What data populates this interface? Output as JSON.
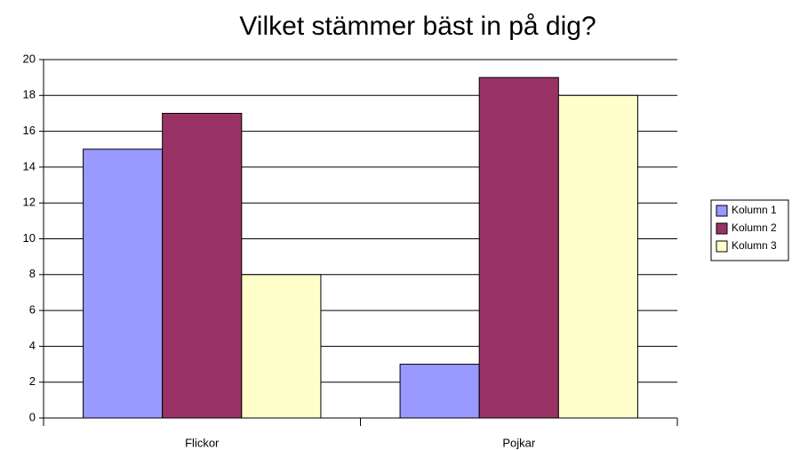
{
  "chart_data": {
    "type": "bar",
    "title": "Vilket stämmer bäst in på dig?",
    "categories": [
      "Flickor",
      "Pojkar"
    ],
    "series": [
      {
        "name": "Kolumn 1",
        "color": "#9999ff",
        "values": [
          15,
          3
        ]
      },
      {
        "name": "Kolumn 2",
        "color": "#993366",
        "values": [
          17,
          19
        ]
      },
      {
        "name": "Kolumn 3",
        "color": "#ffffcc",
        "values": [
          8,
          18
        ]
      }
    ],
    "ylim": [
      0,
      20
    ],
    "yticks": [
      0,
      2,
      4,
      6,
      8,
      10,
      12,
      14,
      16,
      18,
      20
    ],
    "grid": true,
    "legend": "right"
  }
}
